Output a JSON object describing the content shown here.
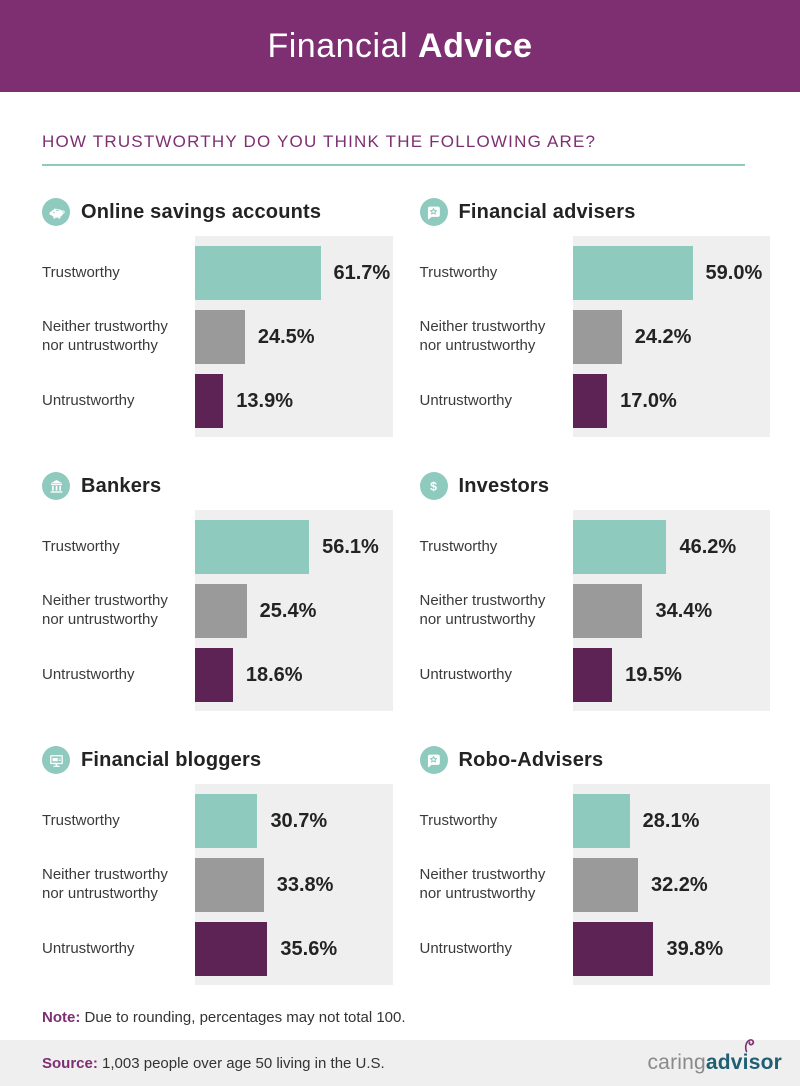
{
  "header": {
    "title_regular": "Financial",
    "title_bold": "Advice"
  },
  "section_heading": "HOW TRUSTWORTHY DO YOU THINK THE FOLLOWING ARE?",
  "chart_data": {
    "type": "bar",
    "orientation": "horizontal",
    "title": "HOW TRUSTWORTHY DO YOU THINK THE FOLLOWING ARE?",
    "categories": [
      "Trustworthy",
      "Neither trustworthy nor untrustworthy",
      "Untrustworthy"
    ],
    "value_unit": "%",
    "xlim": [
      0,
      100
    ],
    "grid": false,
    "legend": "none",
    "bar_colors": {
      "trustworthy": "#8FCABF",
      "neutral": "#9A9A9A",
      "untrustworthy": "#5D2355"
    },
    "series": [
      {
        "name": "Online savings accounts",
        "icon": "piggy-bank-icon",
        "values": [
          61.7,
          24.5,
          13.9
        ],
        "display": [
          "61.7%",
          "24.5%",
          "13.9%"
        ]
      },
      {
        "name": "Financial advisers",
        "icon": "chat-star-icon",
        "values": [
          59.0,
          24.2,
          17.0
        ],
        "display": [
          "59.0%",
          "24.2%",
          "17.0%"
        ]
      },
      {
        "name": "Bankers",
        "icon": "bank-icon",
        "values": [
          56.1,
          25.4,
          18.6
        ],
        "display": [
          "56.1%",
          "25.4%",
          "18.6%"
        ]
      },
      {
        "name": "Investors",
        "icon": "dollar-icon",
        "values": [
          46.2,
          34.4,
          19.5
        ],
        "display": [
          "46.2%",
          "34.4%",
          "19.5%"
        ]
      },
      {
        "name": "Financial bloggers",
        "icon": "monitor-icon",
        "values": [
          30.7,
          33.8,
          35.6
        ],
        "display": [
          "30.7%",
          "33.8%",
          "35.6%"
        ]
      },
      {
        "name": "Robo-Advisers",
        "icon": "chat-star-icon",
        "values": [
          28.1,
          32.2,
          39.8
        ],
        "display": [
          "28.1%",
          "32.2%",
          "39.8%"
        ]
      }
    ]
  },
  "note": {
    "prefix": "Note:",
    "text": " Due to rounding, percentages may not total 100."
  },
  "source": {
    "prefix": "Source:",
    "text": " 1,003 people over age 50 living in the U.S."
  },
  "logo": {
    "caring": "caring",
    "advisor": "advisor"
  },
  "colors": {
    "header_purple": "#7D2F72",
    "accent_purple": "#7D2F72",
    "teal": "#8FCABF",
    "bar_gray": "#9A9A9A",
    "bar_dark_purple": "#5D2355",
    "chart_background": "#EFEFEF",
    "source_band_background": "#EFEFEF",
    "logo_gray": "#8A8A8A",
    "logo_teal": "#1F5E73"
  }
}
